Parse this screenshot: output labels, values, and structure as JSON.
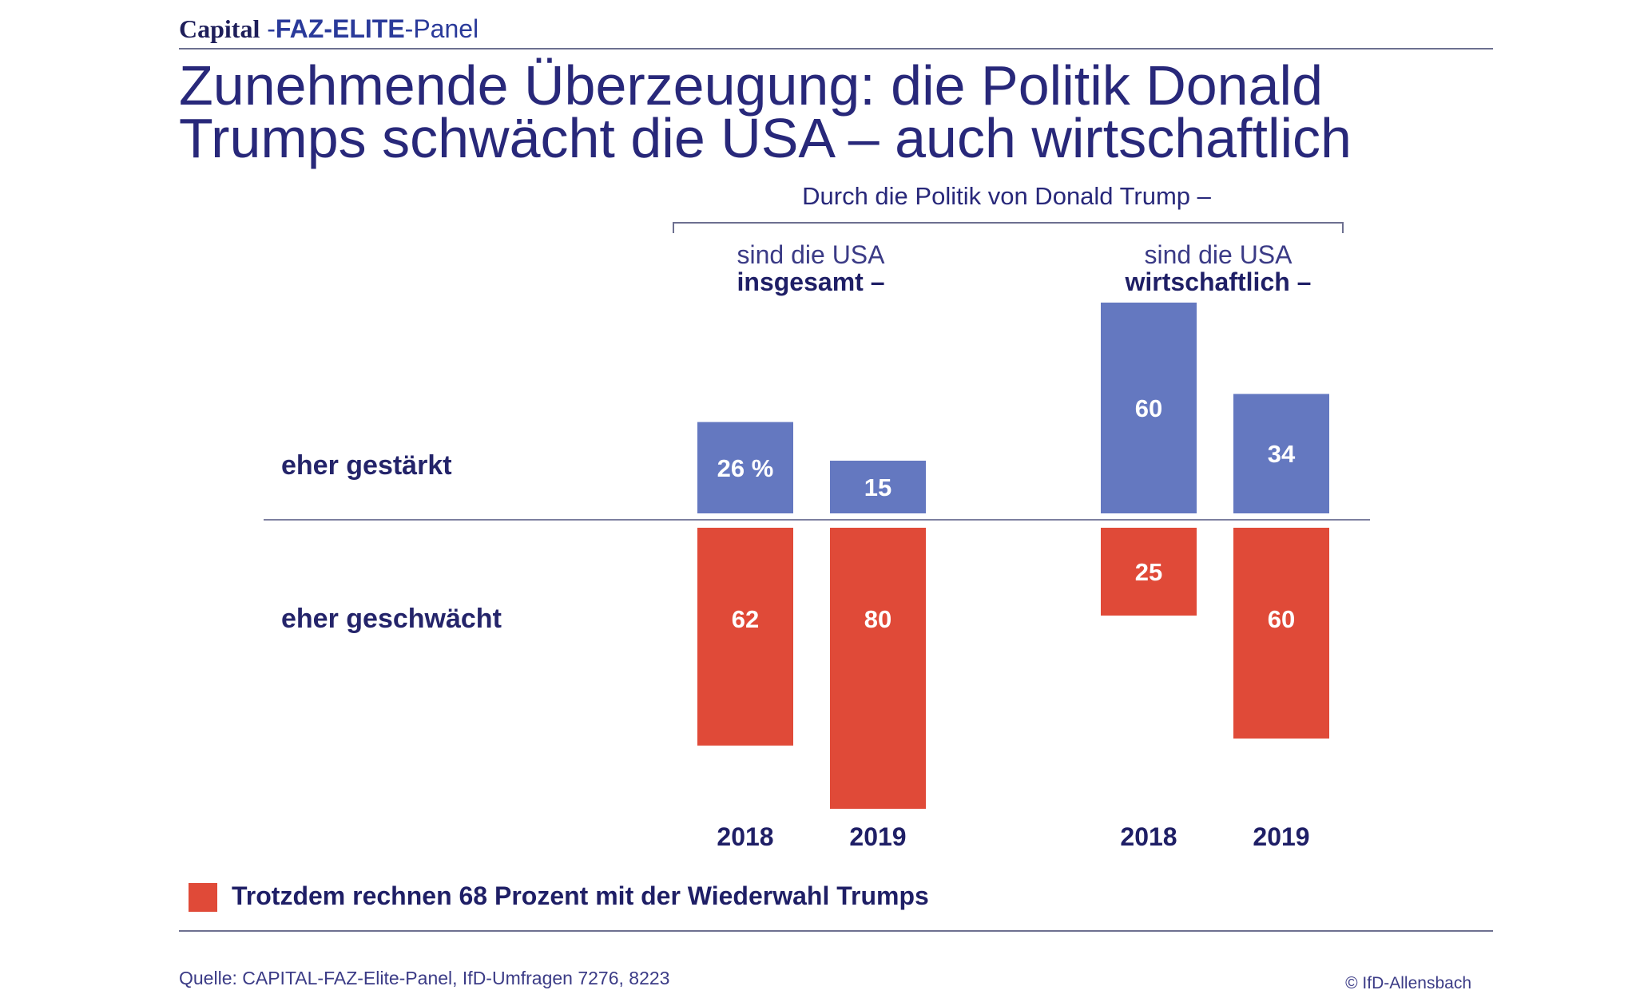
{
  "brand": {
    "capital": "Capital",
    "sep": " -",
    "faz_elite": "FAZ-ELITE",
    "panel": "-Panel"
  },
  "title": {
    "line1": "Zunehmende Überzeugung: die Politik Donald",
    "line2": "Trumps schwächt die USA – auch wirtschaftlich"
  },
  "bracket_label": "Durch die Politik von Donald Trump –",
  "groups": [
    {
      "line1": "sind die USA",
      "line2": "insgesamt –"
    },
    {
      "line1": "sind die USA",
      "line2": "wirtschaftlich –"
    }
  ],
  "row_labels": {
    "positive": "eher gestärkt",
    "negative": "eher geschwächt"
  },
  "years": [
    "2018",
    "2019",
    "2018",
    "2019"
  ],
  "legend_text": "Trotzdem rechnen 68 Prozent mit der Wiederwahl Trumps",
  "source": "Quelle: CAPITAL-FAZ-Elite-Panel, IfD-Umfragen 7276, 8223",
  "copyright": "© IfD-Allensbach",
  "colors": {
    "positive": "#6478c0",
    "negative": "#e04a38",
    "text": "#28287a"
  },
  "chart_data": {
    "type": "bar",
    "categories": [
      "insgesamt 2018",
      "insgesamt 2019",
      "wirtschaftlich 2018",
      "wirtschaftlich 2019"
    ],
    "series": [
      {
        "name": "eher gestärkt",
        "values": [
          26,
          15,
          60,
          34
        ],
        "labels": [
          "26 %",
          "15",
          "60",
          "34"
        ]
      },
      {
        "name": "eher geschwächt",
        "values": [
          62,
          80,
          25,
          60
        ],
        "labels": [
          "62",
          "80",
          "25",
          "60"
        ]
      }
    ],
    "unit": "%"
  }
}
